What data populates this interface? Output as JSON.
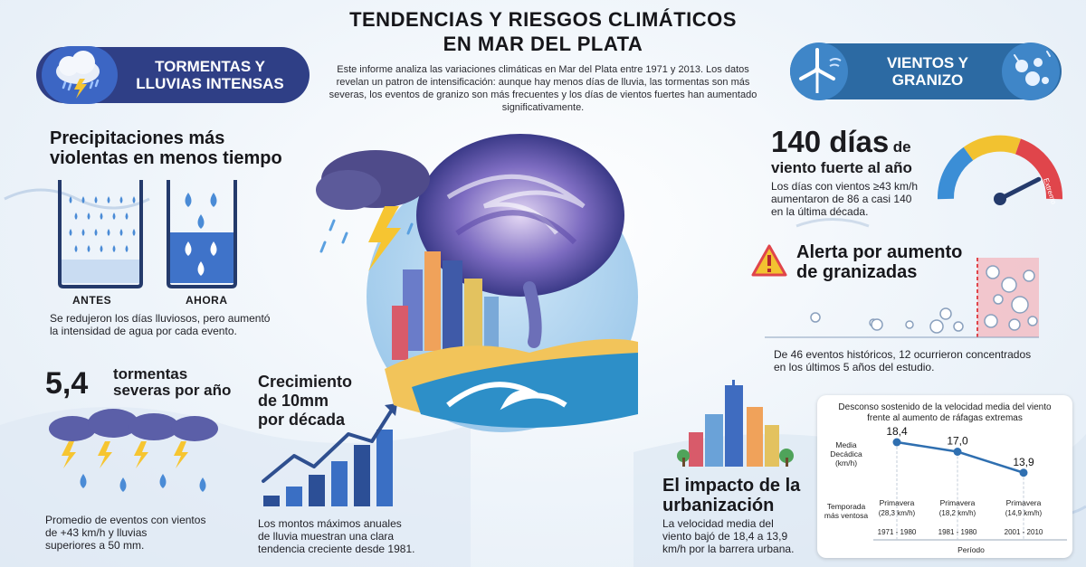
{
  "header": {
    "title_line1": "TENDENCIAS Y RIESGOS CLIMÁTICOS",
    "title_line2": "EN MAR DEL PLATA",
    "intro": "Este informe analiza las variaciones climáticas en Mar del Plata entre 1971 y 2013. Los datos revelan un patron de intensificación: aunque hay menos días de lluvia, las tormentas son más severas, los eventos de granizo son más frecuentes y los días de vientos fuertes han aumentado significativamente."
  },
  "left_pill": {
    "line1": "TORMENTAS Y",
    "line2": "LLUVIAS INTENSAS",
    "icon": "storm-cloud-icon"
  },
  "right_pill": {
    "line1": "VIENTOS Y",
    "line2": "GRANIZO",
    "icon": "wind-turbine-icon"
  },
  "precip": {
    "heading_line1": "Precipitaciones más",
    "heading_line2": "violentas en menos tiempo",
    "label_before": "ANTES",
    "label_now": "AHORA",
    "caption_line1": "Se redujeron los días lluviosos, pero aumentó",
    "caption_line2": "la intensidad de agua por cada evento."
  },
  "storms": {
    "number": "5,4",
    "text_line1": "tormentas",
    "text_line2": "severas por año",
    "caption_line1": "Promedio de eventos con vientos",
    "caption_line2": "de +43 km/h y lluvias",
    "caption_line3": "superiores a 50 mm."
  },
  "growth": {
    "heading_line1": "Crecimiento",
    "heading_line2": "de 10mm",
    "heading_line3": "por década",
    "caption_line1": "Los montos máximos anuales",
    "caption_line2": "de lluvia muestran una clara",
    "caption_line3": "tendencia creciente desde 1981.",
    "bars": [
      0.12,
      0.22,
      0.35,
      0.5,
      0.68,
      0.85
    ]
  },
  "wind_days": {
    "number": "140 días",
    "de": "de",
    "line2": "viento fuerte al año",
    "caption_line1": "Los días con vientos ≥43 km/h",
    "caption_line2": "aumentaron de 86 a casi 140",
    "caption_line3": "en la última década.",
    "gauge_label": "Extremo",
    "gauge_level": 0.85,
    "colors": {
      "blue": "#3b8ed6",
      "yellow": "#f2c230",
      "red": "#e0454b"
    }
  },
  "hail": {
    "heading_line1": "Alerta por aumento",
    "heading_line2": "de granizadas",
    "caption_line1": "De 46 eventos históricos, 12 ocurrieron concentrados",
    "caption_line2": "en los últimos 5 años del estudio."
  },
  "urban": {
    "heading_line1": "El impacto de la",
    "heading_line2": "urbanización",
    "caption_line1": "La velocidad media del",
    "caption_line2": "viento bajó de 18,4 a 13,9",
    "caption_line3": "km/h por la barrera urbana."
  },
  "chart_data": {
    "type": "line",
    "title": "Desconso sostenido de la velocidad media del viento frente al aumento de ráfagas extremas",
    "ylabel": "Media Decádica (km/h)",
    "row2_label": "Temporada más ventosa",
    "xlabel": "Período",
    "categories": [
      "1971 - 1980",
      "1981 - 1980",
      "2001 - 2010"
    ],
    "values": [
      18.4,
      17.0,
      13.9
    ],
    "value_labels": [
      "18,4",
      "17,0",
      "13,9"
    ],
    "season": [
      "Primavera",
      "Primavera",
      "Primavera"
    ],
    "season_values": [
      "(28,3 km/h)",
      "(18,2 km/h)",
      "(14,9 km/h)"
    ],
    "ylim": [
      12,
      20
    ],
    "color": "#2f6fb0"
  }
}
